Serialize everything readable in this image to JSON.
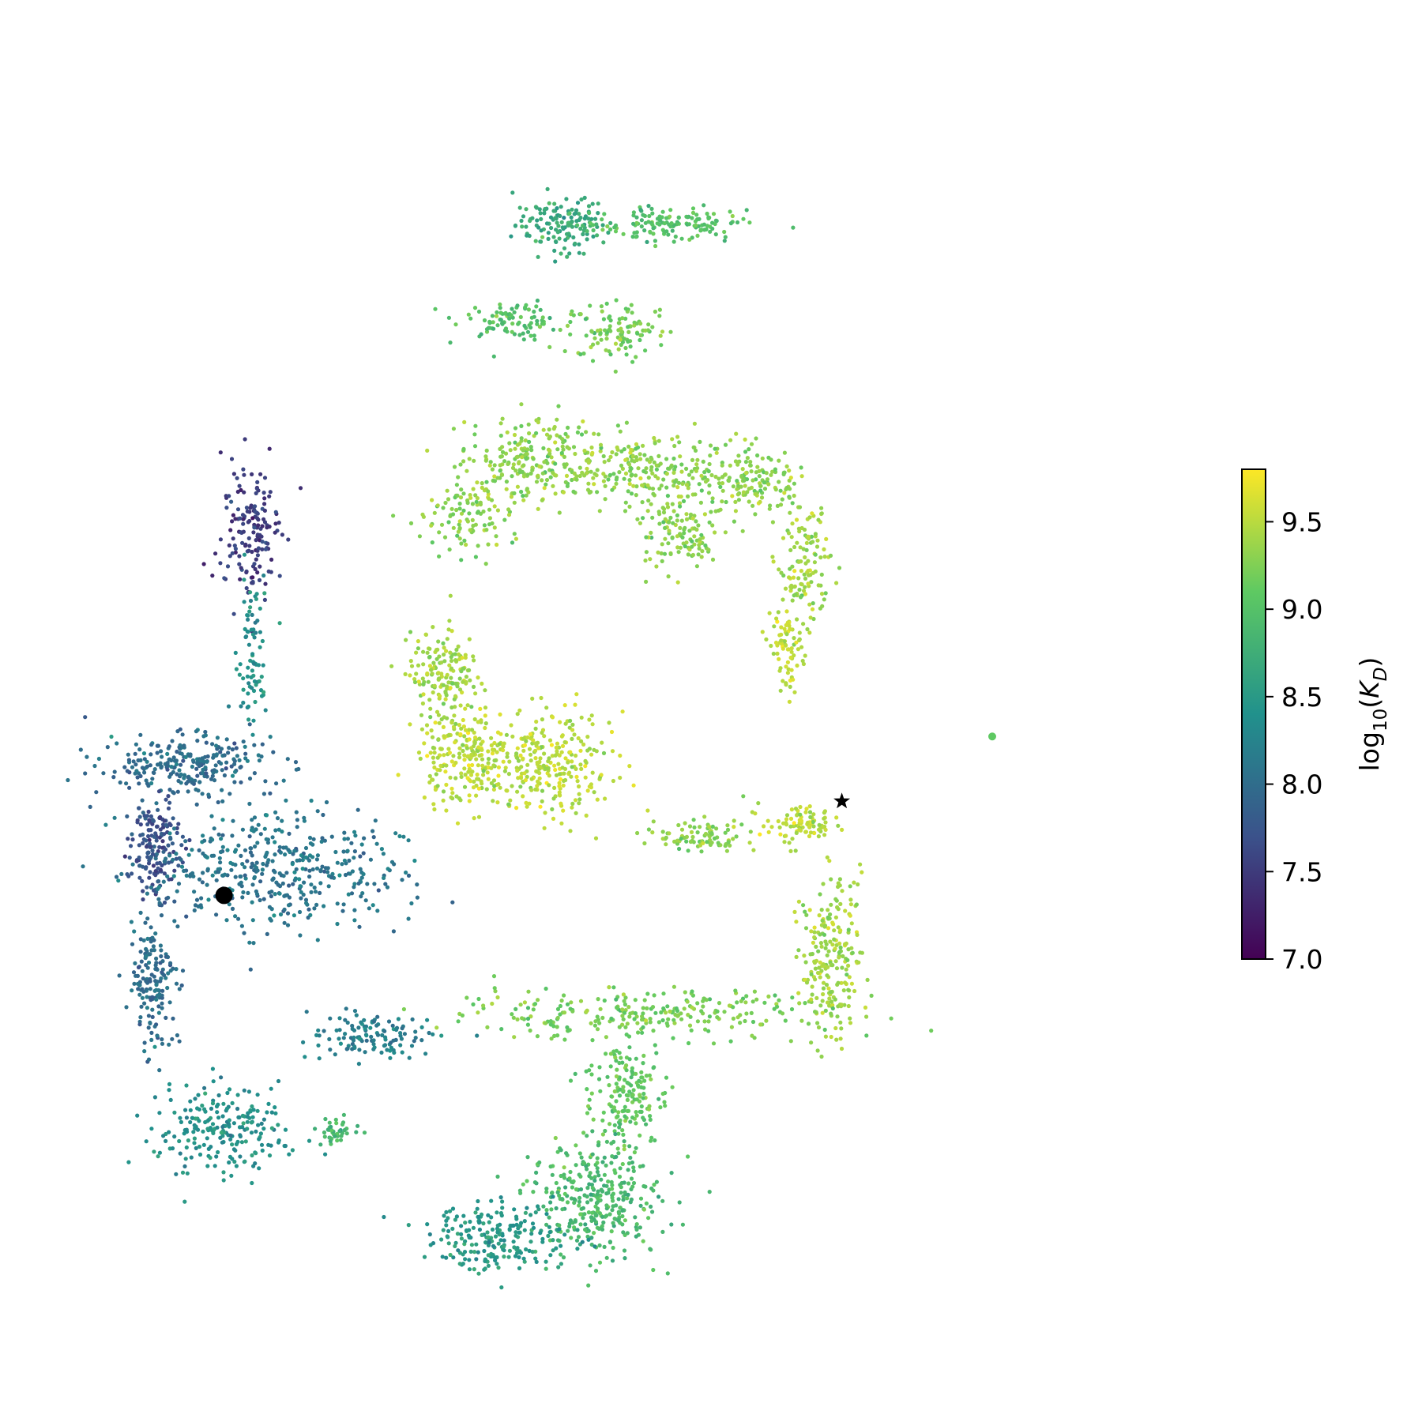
{
  "chart_data": {
    "type": "scatter",
    "title": "",
    "xlabel": "",
    "ylabel": "",
    "axes_visible": false,
    "grid": false,
    "colormap": "viridis",
    "colormap_stops": [
      "#440154",
      "#3b528b",
      "#21918c",
      "#5ec962",
      "#fde725"
    ],
    "colorbar": {
      "label_main": "log",
      "label_sub": "10",
      "label_open": "(",
      "label_var": "K",
      "label_var_sub": "D",
      "label_close": ")",
      "range": [
        7.0,
        9.8
      ],
      "ticks": [
        7.0,
        7.5,
        8.0,
        8.5,
        9.0,
        9.5
      ],
      "tick_labels": [
        "7.0",
        "7.5",
        "8.0",
        "8.5",
        "9.0",
        "9.5"
      ],
      "placement": "right"
    },
    "xlim": [
      0,
      100
    ],
    "ylim": [
      0,
      100
    ],
    "clusters": [
      {
        "name": "c1",
        "x": 45,
        "y": 91,
        "sx": 2.2,
        "sy": 1.2,
        "value": 8.7,
        "n": 140
      },
      {
        "name": "c2",
        "x": 55,
        "y": 91,
        "sx": 3.5,
        "sy": 0.7,
        "value": 9.0,
        "n": 140
      },
      {
        "name": "c3",
        "x": 40,
        "y": 83,
        "sx": 2.4,
        "sy": 0.8,
        "value": 9.0,
        "n": 90
      },
      {
        "name": "c4",
        "x": 50,
        "y": 82,
        "sx": 2.5,
        "sy": 1.2,
        "value": 9.2,
        "n": 110
      },
      {
        "name": "c5",
        "x": 42,
        "y": 71,
        "sx": 3.2,
        "sy": 2.0,
        "value": 9.3,
        "n": 220
      },
      {
        "name": "c6",
        "x": 36,
        "y": 66,
        "sx": 1.8,
        "sy": 1.6,
        "value": 9.3,
        "n": 100
      },
      {
        "name": "c7",
        "x": 53,
        "y": 70,
        "sx": 5.0,
        "sy": 1.4,
        "value": 9.3,
        "n": 250
      },
      {
        "name": "c8",
        "x": 56,
        "y": 65,
        "sx": 2.0,
        "sy": 1.8,
        "value": 9.3,
        "n": 120
      },
      {
        "name": "c9",
        "x": 63,
        "y": 69,
        "sx": 2.0,
        "sy": 1.5,
        "value": 9.3,
        "n": 120
      },
      {
        "name": "c10",
        "x": 67.5,
        "y": 62,
        "sx": 1.2,
        "sy": 2.4,
        "value": 9.4,
        "n": 120
      },
      {
        "name": "c11",
        "x": 66,
        "y": 55,
        "sx": 0.8,
        "sy": 1.8,
        "value": 9.5,
        "n": 80
      },
      {
        "name": "c12",
        "x": 34,
        "y": 53,
        "sx": 1.6,
        "sy": 1.8,
        "value": 9.4,
        "n": 150
      },
      {
        "name": "c13",
        "x": 36,
        "y": 46,
        "sx": 2.2,
        "sy": 2.0,
        "value": 9.5,
        "n": 240
      },
      {
        "name": "c14",
        "x": 44,
        "y": 45,
        "sx": 2.8,
        "sy": 2.2,
        "value": 9.5,
        "n": 260
      },
      {
        "name": "c15",
        "x": 58,
        "y": 39,
        "sx": 2.0,
        "sy": 0.8,
        "value": 9.3,
        "n": 90
      },
      {
        "name": "c16",
        "x": 67,
        "y": 40,
        "sx": 1.8,
        "sy": 0.8,
        "value": 9.5,
        "n": 90
      },
      {
        "name": "c17",
        "x": 70,
        "y": 29,
        "sx": 1.4,
        "sy": 3.2,
        "value": 9.4,
        "n": 220
      },
      {
        "name": "c18",
        "x": 52,
        "y": 24,
        "sx": 9.0,
        "sy": 1.1,
        "value": 9.2,
        "n": 260
      },
      {
        "name": "c19",
        "x": 51,
        "y": 17,
        "sx": 2.0,
        "sy": 2.4,
        "value": 9.1,
        "n": 180
      },
      {
        "name": "c20",
        "x": 48,
        "y": 8,
        "sx": 3.0,
        "sy": 2.4,
        "value": 8.9,
        "n": 320
      },
      {
        "name": "c21",
        "x": 39,
        "y": 5,
        "sx": 3.5,
        "sy": 1.4,
        "value": 8.5,
        "n": 220
      },
      {
        "name": "c22",
        "x": 16,
        "y": 65,
        "sx": 1.4,
        "sy": 3.0,
        "value": 7.5,
        "n": 160
      },
      {
        "name": "c23",
        "x": 16,
        "y": 55,
        "sx": 0.9,
        "sy": 3.5,
        "value": 8.4,
        "n": 80
      },
      {
        "name": "c24",
        "x": 10,
        "y": 45,
        "sx": 4.0,
        "sy": 1.3,
        "value": 8.0,
        "n": 260
      },
      {
        "name": "c25",
        "x": 7,
        "y": 38,
        "sx": 1.2,
        "sy": 2.0,
        "value": 7.7,
        "n": 160
      },
      {
        "name": "c26",
        "x": 18,
        "y": 36,
        "sx": 6.0,
        "sy": 2.5,
        "value": 8.1,
        "n": 420
      },
      {
        "name": "c27",
        "x": 7,
        "y": 27,
        "sx": 1.2,
        "sy": 3.0,
        "value": 8.0,
        "n": 160
      },
      {
        "name": "c28",
        "x": 13,
        "y": 14,
        "sx": 3.0,
        "sy": 2.0,
        "value": 8.4,
        "n": 220
      },
      {
        "name": "c29",
        "x": 27,
        "y": 22,
        "sx": 2.8,
        "sy": 1.0,
        "value": 8.2,
        "n": 120
      },
      {
        "name": "c30",
        "x": 24,
        "y": 14,
        "sx": 1.0,
        "sy": 0.6,
        "value": 8.9,
        "n": 40
      }
    ],
    "markers": [
      {
        "name": "dot-marker",
        "shape": "circle",
        "x": 13.5,
        "y": 34.0
      },
      {
        "name": "star-marker",
        "shape": "star",
        "x": 71.0,
        "y": 42.0
      },
      {
        "name": "outlier-point",
        "shape": "circle-small",
        "x": 85.0,
        "y": 47.5,
        "value": 9.1
      }
    ]
  }
}
